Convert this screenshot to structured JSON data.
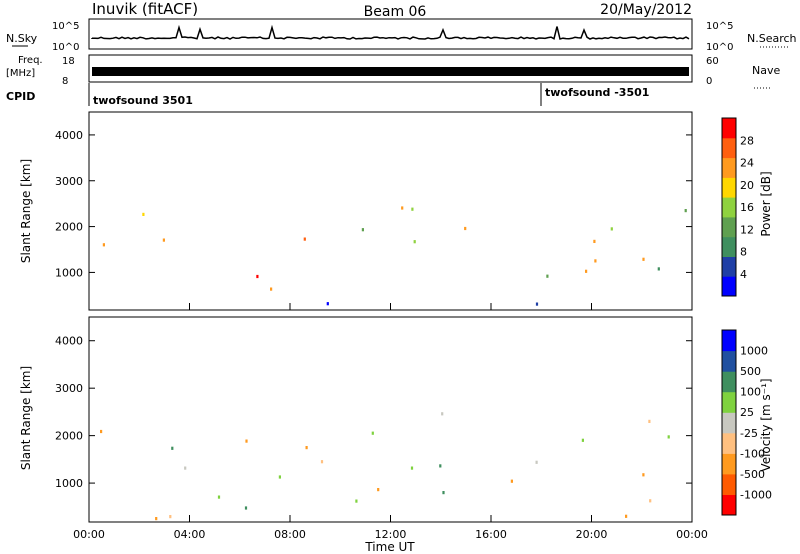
{
  "header": {
    "station": "Inuvik (fitACF)",
    "beam": "Beam 06",
    "date": "20/May/2012"
  },
  "status": {
    "nsky_label": "N.Sky",
    "nsky_ticks": [
      "10^5",
      "10^0"
    ],
    "nsearch_label": "N.Search",
    "nsearch_ticks": [
      "10^5",
      "10^0"
    ],
    "freq_label_1": "Freq.",
    "freq_label_2": "[MHz]",
    "freq_ticks": [
      "18",
      "8"
    ],
    "nave_label": "Nave",
    "nave_ticks": [
      "60",
      "0"
    ],
    "cpid_label": "CPID",
    "cpid_segments": [
      {
        "name": "twofsound 3501",
        "start_hour": 0
      },
      {
        "name": "twofsound -3501",
        "start_hour": 18
      }
    ]
  },
  "chart_data": [
    {
      "type": "heatmap",
      "panel": "power",
      "ylabel": "Slant Range [km]",
      "yticks": [
        "1000",
        "2000",
        "3000",
        "4000"
      ],
      "ylim": [
        180,
        4500
      ],
      "xlim": [
        0,
        24
      ],
      "colorbar_label": "Power [dB]",
      "colorbar_ticks": [
        "28",
        "24",
        "20",
        "16",
        "12",
        "8",
        "4"
      ],
      "colorscale": [
        "#0000ff",
        "#1f3fa6",
        "#3f8f5f",
        "#5fa050",
        "#8fd23f",
        "#ffd700",
        "#ff9a1f",
        "#ff5f0f",
        "#ff0000"
      ],
      "scatter_regions_note": "see regions",
      "regions": [
        {
          "t0": 0.0,
          "t1": 6.0,
          "r0": 1200,
          "r1": 2300,
          "level": 0.7
        },
        {
          "t0": 3.0,
          "t1": 9.5,
          "r0": 200,
          "r1": 1000,
          "level": 0.95
        },
        {
          "t0": 5.5,
          "t1": 9.0,
          "r0": 1500,
          "r1": 2100,
          "level": 0.8
        },
        {
          "t0": 10.0,
          "t1": 16.0,
          "r0": 1000,
          "r1": 2700,
          "level": 0.5
        },
        {
          "t0": 16.0,
          "t1": 24.0,
          "r0": 800,
          "r1": 2400,
          "level": 0.55
        },
        {
          "t0": 19.0,
          "t1": 24.0,
          "r0": 900,
          "r1": 1700,
          "level": 0.8
        },
        {
          "t0": 0.0,
          "t1": 24.0,
          "r0": 200,
          "r1": 350,
          "level": 0.1
        }
      ]
    },
    {
      "type": "heatmap",
      "panel": "velocity",
      "ylabel": "Slant Range [km]",
      "yticks": [
        "1000",
        "2000",
        "3000",
        "4000"
      ],
      "ylim": [
        180,
        4500
      ],
      "xlim": [
        0,
        24
      ],
      "xticks": [
        "00:00",
        "04:00",
        "08:00",
        "12:00",
        "16:00",
        "20:00",
        "00:00"
      ],
      "xlabel": "Time UT",
      "colorbar_label": "Velocity [m s⁻¹]",
      "colorbar_ticks": [
        "1000",
        "500",
        "100",
        "25",
        "-25",
        "-100",
        "-500",
        "-1000"
      ],
      "colorscale": [
        "#ff0000",
        "#ff5a00",
        "#ff9a1f",
        "#ffc080",
        "#c8c8c0",
        "#7fd23f",
        "#3f8f5f",
        "#2050a0",
        "#0000ff"
      ],
      "regions": [
        {
          "t0": 0.0,
          "t1": 24.0,
          "r0": 1300,
          "r1": 2600,
          "level": 0.5
        },
        {
          "t0": 0.0,
          "t1": 3.0,
          "r0": 200,
          "r1": 800,
          "level": 0.15
        },
        {
          "t0": 2.0,
          "t1": 9.0,
          "r0": 300,
          "r1": 1200,
          "level": 0.68
        },
        {
          "t0": 9.0,
          "t1": 14.0,
          "r0": 300,
          "r1": 1300,
          "level": 0.5
        },
        {
          "t0": 13.5,
          "t1": 16.0,
          "r0": 700,
          "r1": 1200,
          "level": 0.68
        },
        {
          "t0": 16.0,
          "t1": 23.5,
          "r0": 500,
          "r1": 1300,
          "level": 0.2
        },
        {
          "t0": 0.0,
          "t1": 24.0,
          "r0": 200,
          "r1": 350,
          "level": 0.45
        }
      ]
    }
  ]
}
